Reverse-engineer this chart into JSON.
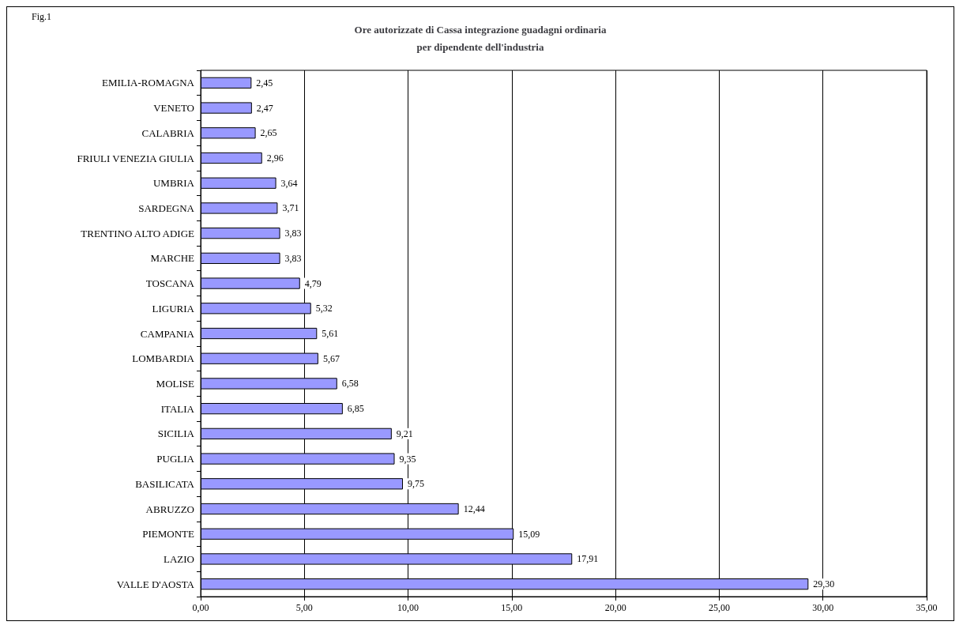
{
  "chart_data": {
    "type": "bar",
    "orientation": "horizontal",
    "title": "Ore autorizzate di Cassa integrazione guadagni ordinaria\nper dipendente dell'industria",
    "annotations": [
      "Fig.1"
    ],
    "categories": [
      "EMILIA-ROMAGNA",
      "VENETO",
      "CALABRIA",
      "FRIULI VENEZIA GIULIA",
      "UMBRIA",
      "SARDEGNA",
      "TRENTINO ALTO ADIGE",
      "MARCHE",
      "TOSCANA",
      "LIGURIA",
      "CAMPANIA",
      "LOMBARDIA",
      "MOLISE",
      "ITALIA",
      "SICILIA",
      "PUGLIA",
      "BASILICATA",
      "ABRUZZO",
      "PIEMONTE",
      "LAZIO",
      "VALLE D'AOSTA"
    ],
    "values": [
      2.45,
      2.47,
      2.65,
      2.96,
      3.64,
      3.71,
      3.83,
      3.83,
      4.79,
      5.32,
      5.61,
      5.67,
      6.58,
      6.85,
      9.21,
      9.35,
      9.75,
      12.44,
      15.09,
      17.91,
      29.3
    ],
    "value_labels": [
      "2,45",
      "2,47",
      "2,65",
      "2,96",
      "3,64",
      "3,71",
      "3,83",
      "3,83",
      "4,79",
      "5,32",
      "5,61",
      "5,67",
      "6,58",
      "6,85",
      "9,21",
      "9,35",
      "9,75",
      "12,44",
      "15,09",
      "17,91",
      "29,30"
    ],
    "color": "#9999ff",
    "xlim": [
      0,
      35
    ],
    "xticks": [
      {
        "value": 0,
        "label": "0,00"
      },
      {
        "value": 5,
        "label": "5,00"
      },
      {
        "value": 10,
        "label": "10,00"
      },
      {
        "value": 15,
        "label": "15,00"
      },
      {
        "value": 20,
        "label": "20,00"
      },
      {
        "value": 25,
        "label": "25,00"
      },
      {
        "value": 30,
        "label": "30,00"
      },
      {
        "value": 35,
        "label": "35,00"
      }
    ],
    "grid": "x"
  }
}
